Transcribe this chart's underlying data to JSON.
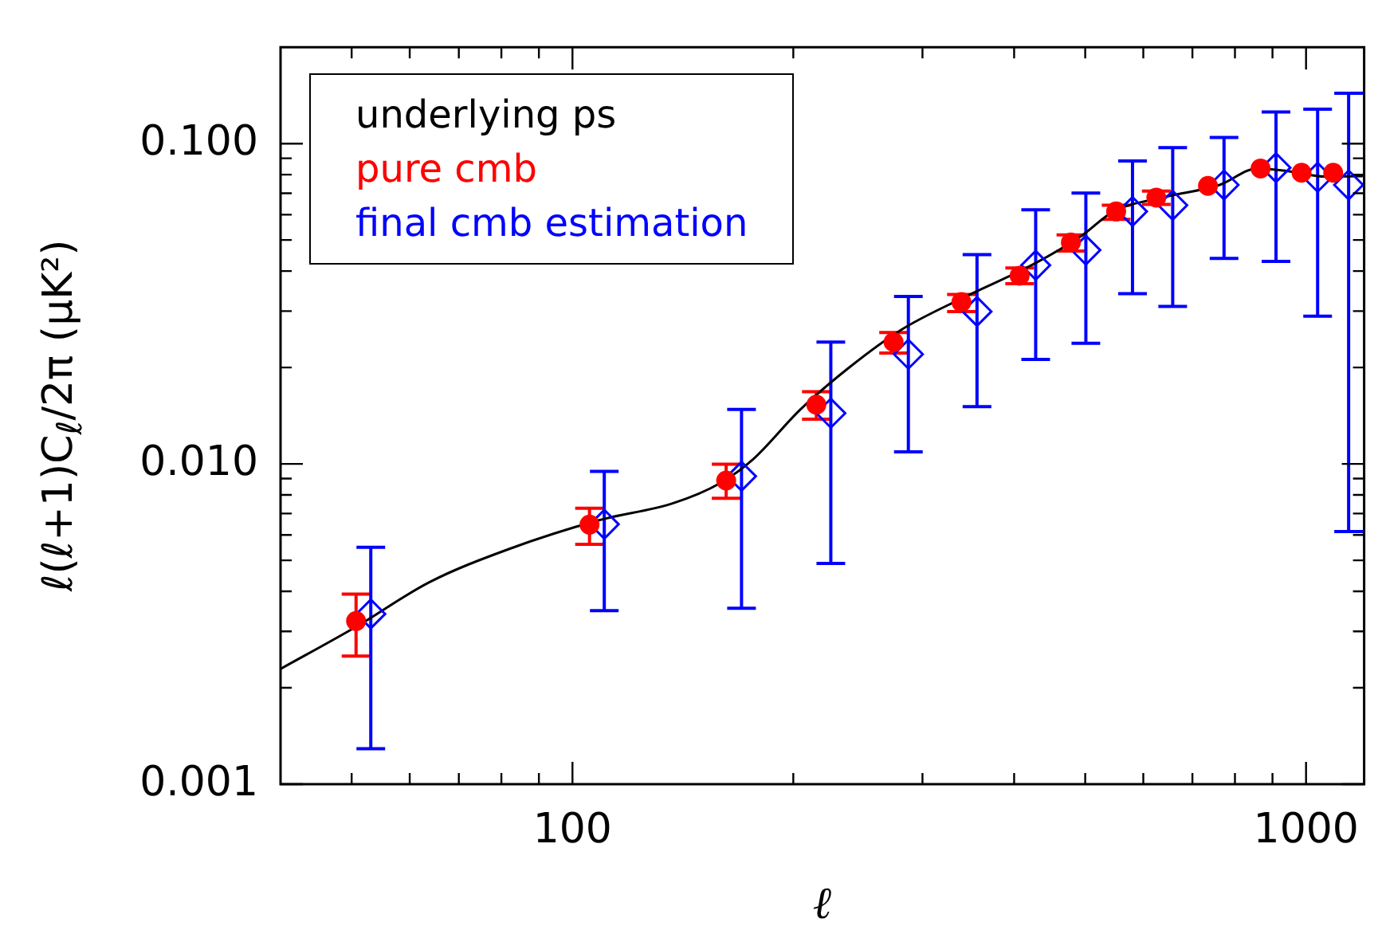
{
  "chart_data": {
    "type": "scatter",
    "xlabel": "ℓ",
    "ylabel": "ℓ(ℓ+1)C$_{ℓ}$/2π (μK²)",
    "log": "xy",
    "legend": "top left",
    "xlim": [
      40,
      1200
    ],
    "ylim": [
      0.001,
      0.2
    ],
    "xticks": [
      {
        "value": 50,
        "label": null
      },
      {
        "value": 60,
        "label": null
      },
      {
        "value": 70,
        "label": null
      },
      {
        "value": 80,
        "label": null
      },
      {
        "value": 90,
        "label": null
      },
      100,
      {
        "value": 200,
        "label": null
      },
      {
        "value": 300,
        "label": null
      },
      {
        "value": 400,
        "label": null
      },
      {
        "value": 500,
        "label": null
      },
      {
        "value": 600,
        "label": null
      },
      {
        "value": 700,
        "label": null
      },
      {
        "value": 800,
        "label": null
      },
      {
        "value": 900,
        "label": null
      },
      1000
    ],
    "yticks": [
      0.001,
      {
        "value": 0.002,
        "label": null
      },
      {
        "value": 0.003,
        "label": null
      },
      {
        "value": 0.004,
        "label": null
      },
      {
        "value": 0.005,
        "label": null
      },
      {
        "value": 0.006,
        "label": null
      },
      {
        "value": 0.007,
        "label": null
      },
      {
        "value": 0.008,
        "label": null
      },
      {
        "value": 0.009,
        "label": null
      },
      {
        "value": 0.01,
        "label": "0.010"
      },
      {
        "value": 0.02,
        "label": null
      },
      {
        "value": 0.03,
        "label": null
      },
      {
        "value": 0.04,
        "label": null
      },
      {
        "value": 0.05,
        "label": null
      },
      {
        "value": 0.06,
        "label": null
      },
      {
        "value": 0.07,
        "label": null
      },
      {
        "value": 0.08,
        "label": null
      },
      {
        "value": 0.09,
        "label": null
      },
      {
        "value": 0.1,
        "label": "0.100"
      }
    ],
    "series": [
      {
        "name": "underlying ps",
        "type": "line",
        "color": "#000000",
        "marker": "none",
        "x": [
          40,
          50.7,
          63.8,
          81.9,
          108.7,
          137.2,
          159,
          176,
          204.6,
          237.7,
          280.5,
          342.6,
          425.8,
          494,
          546.5,
          645.6,
          762.6,
          857.8,
          931.6,
          1064,
          1195
        ],
        "values": [
          0.00229,
          0.0031,
          0.00427,
          0.00542,
          0.00667,
          0.00754,
          0.00871,
          0.0103,
          0.0148,
          0.0199,
          0.0262,
          0.0332,
          0.0421,
          0.0515,
          0.0614,
          0.0683,
          0.0743,
          0.0836,
          0.0824,
          0.0789,
          0.0791
        ]
      },
      {
        "name": "pure cmb",
        "color": "#ff0000",
        "marker": "circle",
        "x": [
          50.7,
          105.5,
          162,
          215,
          274,
          339,
          407,
          478,
          551,
          625,
          735,
          867,
          986,
          1089
        ],
        "values": [
          0.00323,
          0.00646,
          0.00887,
          0.0153,
          0.024,
          0.032,
          0.0387,
          0.0491,
          0.0614,
          0.0678,
          0.0738,
          0.0836,
          0.0811,
          0.0811
        ],
        "errors": [
          [
            0.00251,
            0.00392
          ],
          [
            0.00561,
            0.00727
          ],
          [
            0.00781,
            0.00998
          ],
          [
            0.0138,
            0.0168
          ],
          [
            0.0222,
            0.0257
          ],
          [
            0.0299,
            0.0338
          ],
          [
            0.0365,
            0.0409
          ],
          [
            0.0462,
            0.0519
          ],
          [
            0.058,
            0.0642
          ],
          [
            0.0646,
            0.0711
          ],
          null,
          null,
          null,
          null
        ]
      },
      {
        "name": "final cmb estimation",
        "color": "#0000ff",
        "marker": "diamond",
        "x": [
          53.1,
          110.5,
          170,
          225,
          287,
          356,
          428,
          501,
          580,
          658,
          773,
          910,
          1037,
          1143
        ],
        "values": [
          0.0034,
          0.00648,
          0.00915,
          0.0144,
          0.022,
          0.0299,
          0.0417,
          0.0465,
          0.0614,
          0.0642,
          0.0743,
          0.0841,
          0.0785,
          0.0743
        ],
        "errors": [
          [
            0.00129,
            0.00549
          ],
          [
            0.00348,
            0.00948
          ],
          [
            0.00354,
            0.0148
          ],
          [
            0.00489,
            0.024
          ],
          [
            0.0109,
            0.0333
          ],
          [
            0.0151,
            0.045
          ],
          [
            0.0212,
            0.0621
          ],
          [
            0.0238,
            0.0701
          ],
          [
            0.034,
            0.0883
          ],
          [
            0.031,
            0.0971
          ],
          [
            0.0438,
            0.1045
          ],
          [
            0.0429,
            0.1256
          ],
          [
            0.0289,
            0.128
          ],
          [
            0.00615,
            0.1437
          ]
        ]
      }
    ]
  }
}
